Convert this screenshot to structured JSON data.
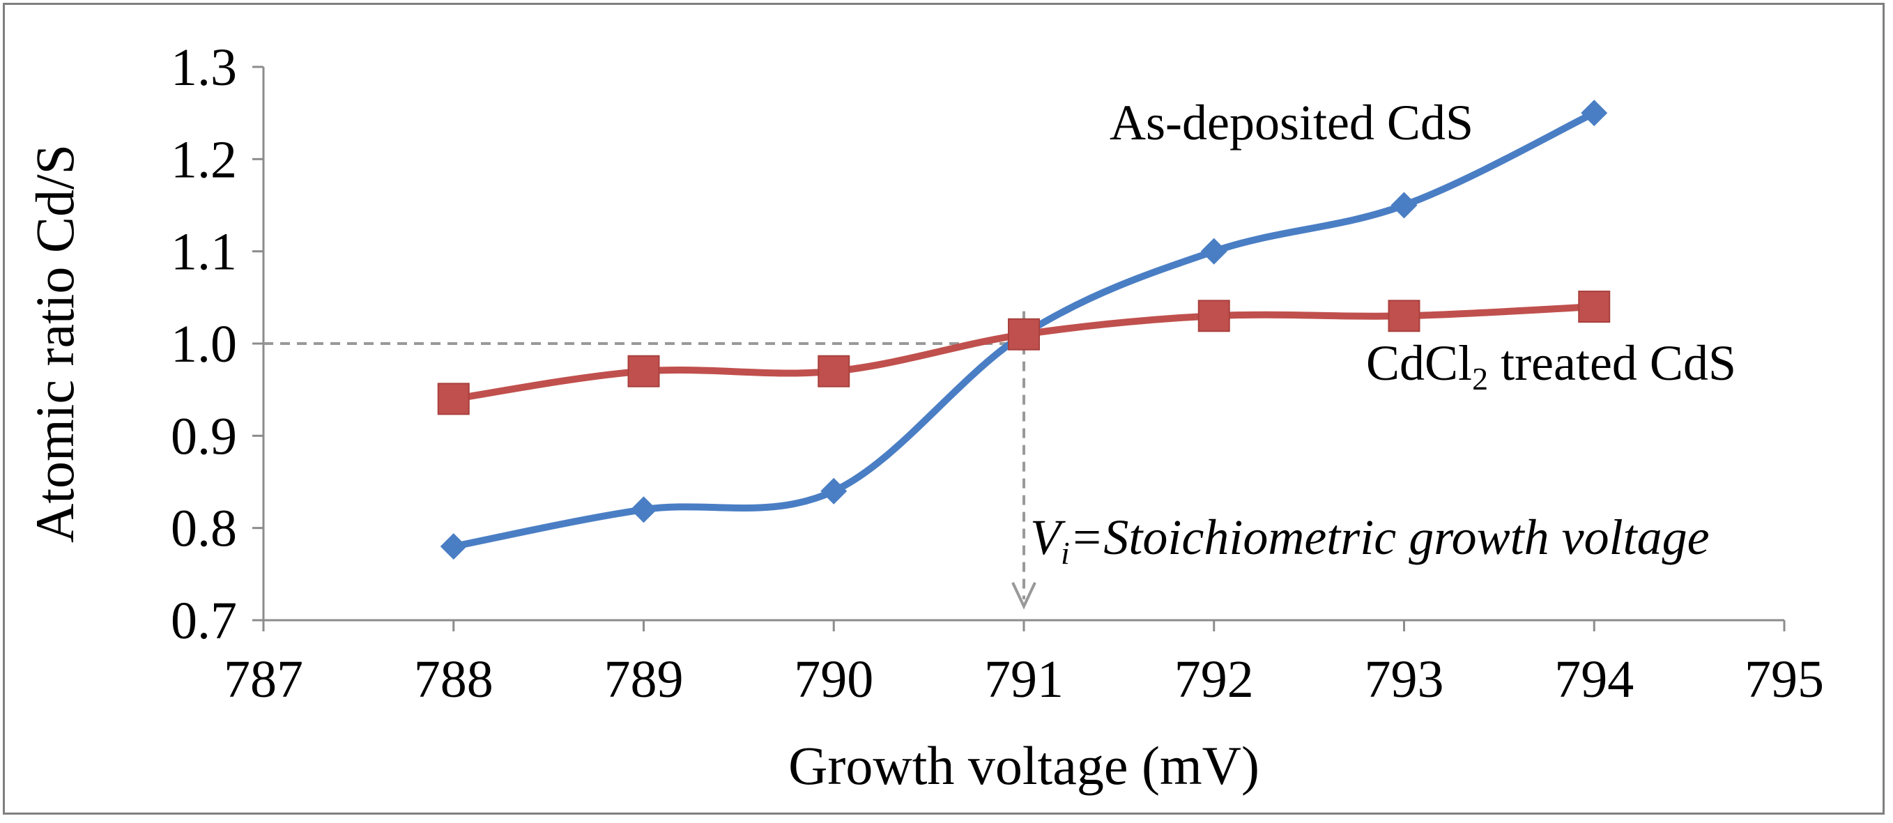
{
  "chart_data": {
    "type": "line",
    "title": "",
    "xlabel": "Growth voltage (mV)",
    "ylabel": "Atomic ratio Cd/S",
    "xlim": [
      787,
      795
    ],
    "ylim": [
      0.7,
      1.3
    ],
    "x_ticks": [
      "787",
      "788",
      "789",
      "790",
      "791",
      "792",
      "793",
      "794",
      "795"
    ],
    "y_ticks": [
      "0.7",
      "0.8",
      "0.9",
      "1.0",
      "1.1",
      "1.2",
      "1.3"
    ],
    "grid": false,
    "x": [
      788,
      789,
      790,
      791,
      792,
      793,
      794
    ],
    "series": [
      {
        "name": "As-deposited CdS",
        "color": "#4a7ec4",
        "marker": "diamond",
        "values": [
          0.78,
          0.82,
          0.84,
          1.01,
          1.1,
          1.15,
          1.25
        ]
      },
      {
        "name": "CdCl2 treated CdS",
        "color": "#c0504d",
        "marker": "square",
        "values": [
          0.94,
          0.97,
          0.97,
          1.01,
          1.03,
          1.03,
          1.04
        ]
      }
    ],
    "annotations": {
      "as_deposited": "As-deposited CdS",
      "cdcl2_prefix": "CdCl",
      "cdcl2_sub": "2",
      "cdcl2_suffix": " treated CdS",
      "vi_symbol": "V",
      "vi_sub": "i",
      "vi_text": "=Stoichiometric growth voltage"
    },
    "reference": {
      "x": 791,
      "y": 1.0
    }
  }
}
